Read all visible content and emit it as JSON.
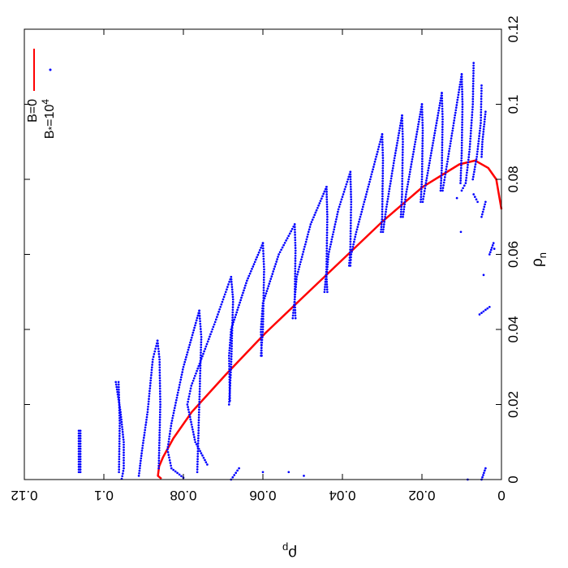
{
  "chart_data": {
    "type": "scatter",
    "title": "",
    "rotated": "90deg clockwise",
    "xlabel": "ρp",
    "ylabel": "ρn",
    "x_label_main": "ρ",
    "x_label_sub": "p",
    "y_label_main": "ρ",
    "y_label_sub": "n",
    "xlim": [
      0,
      0.12
    ],
    "ylim": [
      0,
      0.12
    ],
    "x_ticks": [
      "0",
      "0.02",
      "0.04",
      "0.06",
      "0.08",
      "0.1",
      "0.12"
    ],
    "y_ticks": [
      "0",
      "0.02",
      "0.04",
      "0.06",
      "0.08",
      "0.1",
      "0.12"
    ],
    "x_tick_values": [
      0,
      0.02,
      0.04,
      0.06,
      0.08,
      0.1,
      0.12
    ],
    "y_tick_values": [
      0,
      0.02,
      0.04,
      0.06,
      0.08,
      0.1,
      0.12
    ],
    "grid": false,
    "legend_position": "top-left",
    "series": [
      {
        "name": "B=0",
        "style": "line",
        "color": "#ff0000",
        "points": [
          [
            0.0,
            0.072
          ],
          [
            0.0013,
            0.08
          ],
          [
            0.0033,
            0.083
          ],
          [
            0.0066,
            0.085
          ],
          [
            0.0106,
            0.084
          ],
          [
            0.0198,
            0.078
          ],
          [
            0.0297,
            0.069
          ],
          [
            0.0396,
            0.059
          ],
          [
            0.0495,
            0.049
          ],
          [
            0.0594,
            0.039
          ],
          [
            0.0693,
            0.028
          ],
          [
            0.0779,
            0.018
          ],
          [
            0.0825,
            0.011
          ],
          [
            0.0851,
            0.006
          ],
          [
            0.0861,
            0.0035
          ],
          [
            0.0864,
            0.001
          ],
          [
            0.0855,
            0.0002
          ]
        ]
      },
      {
        "name": "B*=10^4",
        "label_main": "B",
        "label_star": "*",
        "label_eq": "=10",
        "label_exp": "4",
        "style": "points",
        "color": "#0000ff",
        "segments": [
          [
            [
              0.1063,
              0.013
            ],
            [
              0.1063,
              0.002
            ]
          ],
          [
            [
              0.1059,
              0.013
            ],
            [
              0.1059,
              0.002
            ]
          ],
          [
            [
              0.097,
              0.026
            ],
            [
              0.0958,
              0.018
            ],
            [
              0.095,
              0.01
            ],
            [
              0.095,
              0.003
            ],
            [
              0.0955,
              0.0002
            ]
          ],
          [
            [
              0.0963,
              0.026
            ],
            [
              0.096,
              0.015
            ],
            [
              0.0962,
              0.002
            ]
          ],
          [
            [
              0.0865,
              0.037
            ],
            [
              0.086,
              0.032
            ],
            [
              0.0858,
              0.02
            ],
            [
              0.0862,
              0.003
            ]
          ],
          [
            [
              0.0865,
              0.037
            ],
            [
              0.0877,
              0.032
            ],
            [
              0.089,
              0.018
            ],
            [
              0.0905,
              0.007
            ],
            [
              0.0912,
              0.001
            ]
          ],
          [
            [
              0.076,
              0.045
            ],
            [
              0.0755,
              0.038
            ],
            [
              0.076,
              0.02
            ],
            [
              0.0765,
              0.002
            ]
          ],
          [
            [
              0.076,
              0.045
            ],
            [
              0.08,
              0.03
            ],
            [
              0.083,
              0.015
            ],
            [
              0.084,
              0.008
            ],
            [
              0.083,
              0.003
            ],
            [
              0.08,
              0.0005
            ]
          ],
          [
            [
              0.068,
              0.054
            ],
            [
              0.0675,
              0.048
            ],
            [
              0.068,
              0.03
            ],
            [
              0.0685,
              0.02
            ]
          ],
          [
            [
              0.068,
              0.054
            ],
            [
              0.072,
              0.042
            ],
            [
              0.078,
              0.025
            ],
            [
              0.079,
              0.02
            ],
            [
              0.077,
              0.01
            ],
            [
              0.074,
              0.004
            ]
          ],
          [
            [
              0.06,
              0.063
            ],
            [
              0.0597,
              0.056
            ],
            [
              0.06,
              0.04
            ],
            [
              0.0605,
              0.033
            ]
          ],
          [
            [
              0.06,
              0.063
            ],
            [
              0.064,
              0.053
            ],
            [
              0.068,
              0.04
            ],
            [
              0.0685,
              0.033
            ],
            [
              0.0683,
              0.021
            ]
          ],
          [
            [
              0.052,
              0.068
            ],
            [
              0.0518,
              0.061
            ],
            [
              0.052,
              0.048
            ],
            [
              0.0525,
              0.043
            ]
          ],
          [
            [
              0.052,
              0.068
            ],
            [
              0.056,
              0.06
            ],
            [
              0.06,
              0.047
            ],
            [
              0.0605,
              0.04
            ],
            [
              0.0603,
              0.033
            ]
          ],
          [
            [
              0.044,
              0.078
            ],
            [
              0.0438,
              0.07
            ],
            [
              0.044,
              0.056
            ],
            [
              0.0445,
              0.05
            ]
          ],
          [
            [
              0.044,
              0.078
            ],
            [
              0.048,
              0.068
            ],
            [
              0.0515,
              0.054
            ],
            [
              0.052,
              0.048
            ],
            [
              0.0518,
              0.043
            ]
          ],
          [
            [
              0.038,
              0.082
            ],
            [
              0.0378,
              0.074
            ],
            [
              0.038,
              0.062
            ],
            [
              0.0383,
              0.057
            ]
          ],
          [
            [
              0.038,
              0.082
            ],
            [
              0.041,
              0.072
            ],
            [
              0.0435,
              0.06
            ],
            [
              0.044,
              0.054
            ],
            [
              0.0438,
              0.05
            ]
          ],
          [
            [
              0.03,
              0.092
            ],
            [
              0.0298,
              0.085
            ],
            [
              0.03,
              0.07
            ],
            [
              0.0303,
              0.066
            ]
          ],
          [
            [
              0.03,
              0.092
            ],
            [
              0.033,
              0.08
            ],
            [
              0.0365,
              0.066
            ],
            [
              0.0378,
              0.06
            ],
            [
              0.038,
              0.057
            ]
          ],
          [
            [
              0.025,
              0.097
            ],
            [
              0.0248,
              0.09
            ],
            [
              0.025,
              0.076
            ],
            [
              0.0253,
              0.07
            ]
          ],
          [
            [
              0.025,
              0.097
            ],
            [
              0.027,
              0.085
            ],
            [
              0.029,
              0.072
            ],
            [
              0.0298,
              0.066
            ]
          ],
          [
            [
              0.02,
              0.1
            ],
            [
              0.0198,
              0.093
            ],
            [
              0.02,
              0.08
            ],
            [
              0.0203,
              0.074
            ]
          ],
          [
            [
              0.02,
              0.1
            ],
            [
              0.022,
              0.088
            ],
            [
              0.024,
              0.076
            ],
            [
              0.0248,
              0.07
            ]
          ],
          [
            [
              0.015,
              0.103
            ],
            [
              0.0148,
              0.096
            ],
            [
              0.015,
              0.083
            ],
            [
              0.0153,
              0.077
            ]
          ],
          [
            [
              0.015,
              0.103
            ],
            [
              0.017,
              0.091
            ],
            [
              0.019,
              0.079
            ],
            [
              0.0198,
              0.074
            ]
          ],
          [
            [
              0.01,
              0.108
            ],
            [
              0.0098,
              0.1
            ],
            [
              0.01,
              0.087
            ],
            [
              0.0103,
              0.079
            ]
          ],
          [
            [
              0.01,
              0.108
            ],
            [
              0.012,
              0.095
            ],
            [
              0.014,
              0.082
            ],
            [
              0.0148,
              0.077
            ]
          ],
          [
            [
              0.007,
              0.111
            ],
            [
              0.0072,
              0.1
            ],
            [
              0.008,
              0.088
            ],
            [
              0.009,
              0.079
            ],
            [
              0.01,
              0.077
            ]
          ],
          [
            [
              0.005,
              0.105
            ],
            [
              0.0052,
              0.095
            ],
            [
              0.0062,
              0.086
            ],
            [
              0.0072,
              0.08
            ]
          ],
          [
            [
              0.004,
              0.098
            ],
            [
              0.0048,
              0.09
            ],
            [
              0.005,
              0.086
            ]
          ],
          [
            [
              0.006,
              0.074
            ],
            [
              0.007,
              0.076
            ]
          ],
          [
            [
              0.005,
              0.07
            ],
            [
              0.004,
              0.074
            ]
          ],
          [
            [
              0.002,
              0.063
            ],
            [
              0.003,
              0.06
            ]
          ],
          [
            [
              0.003,
              0.046
            ],
            [
              0.0055,
              0.044
            ]
          ],
          [
            [
              0.004,
              0.003
            ],
            [
              0.005,
              0.0
            ]
          ],
          [
            [
              0.066,
              0.003
            ],
            [
              0.068,
              0.0
            ]
          ]
        ],
        "isolated": [
          [
            0.06,
            0.002
          ],
          [
            0.0535,
            0.002
          ],
          [
            0.0497,
            0.001
          ],
          [
            0.0085,
            0.0
          ],
          [
            0.0045,
            0.0545
          ],
          [
            0.0018,
            0.0615
          ],
          [
            0.0112,
            0.075
          ],
          [
            0.0102,
            0.066
          ]
        ]
      }
    ]
  }
}
